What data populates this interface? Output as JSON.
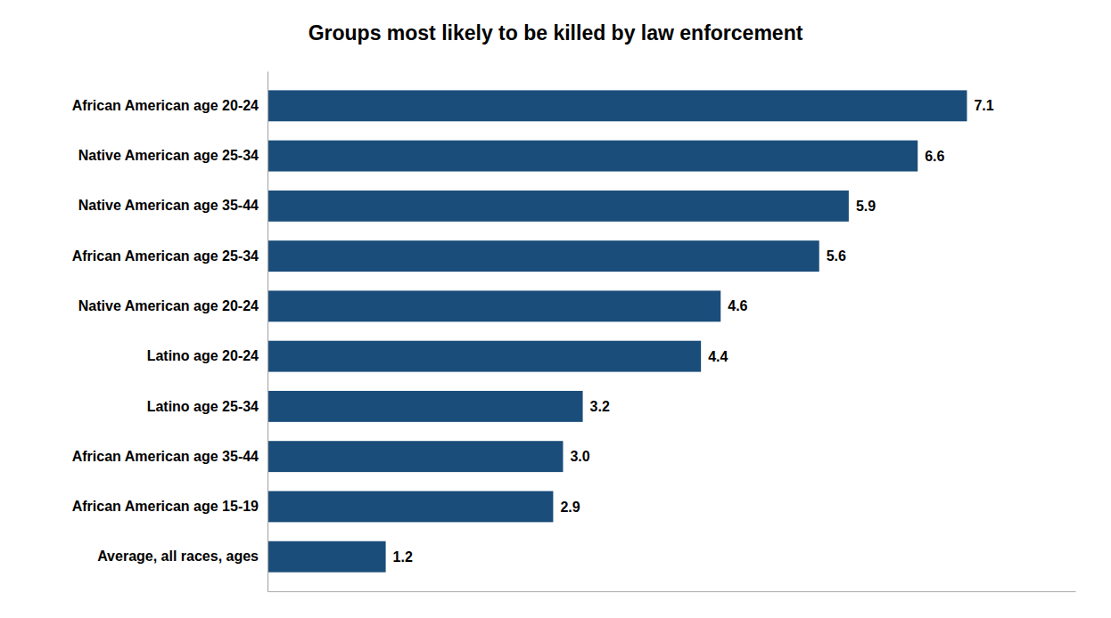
{
  "chart_data": {
    "type": "bar",
    "orientation": "horizontal",
    "title": "Groups most likely to be killed by law enforcement",
    "categories": [
      "Average, all races, ages",
      "African American age 15-19",
      "African American age 35-44",
      "Latino age 25-34",
      "Latino age 20-24",
      "Native American age 20-24",
      "African American age 25-34",
      "Native American age 35-44",
      "Native American age 25-34",
      "African American age 20-24"
    ],
    "values": [
      1.2,
      2.9,
      3.0,
      3.2,
      4.4,
      4.6,
      5.6,
      5.9,
      6.6,
      7.1
    ],
    "value_labels": [
      "1.2",
      "2.9",
      "3.0",
      "3.2",
      "4.4",
      "4.6",
      "5.6",
      "5.9",
      "6.6",
      "7.1"
    ],
    "color": "#1a4d7a",
    "xlim": [
      0,
      8.2
    ],
    "grid": false,
    "data_labels": true,
    "tick_labels": "y"
  }
}
